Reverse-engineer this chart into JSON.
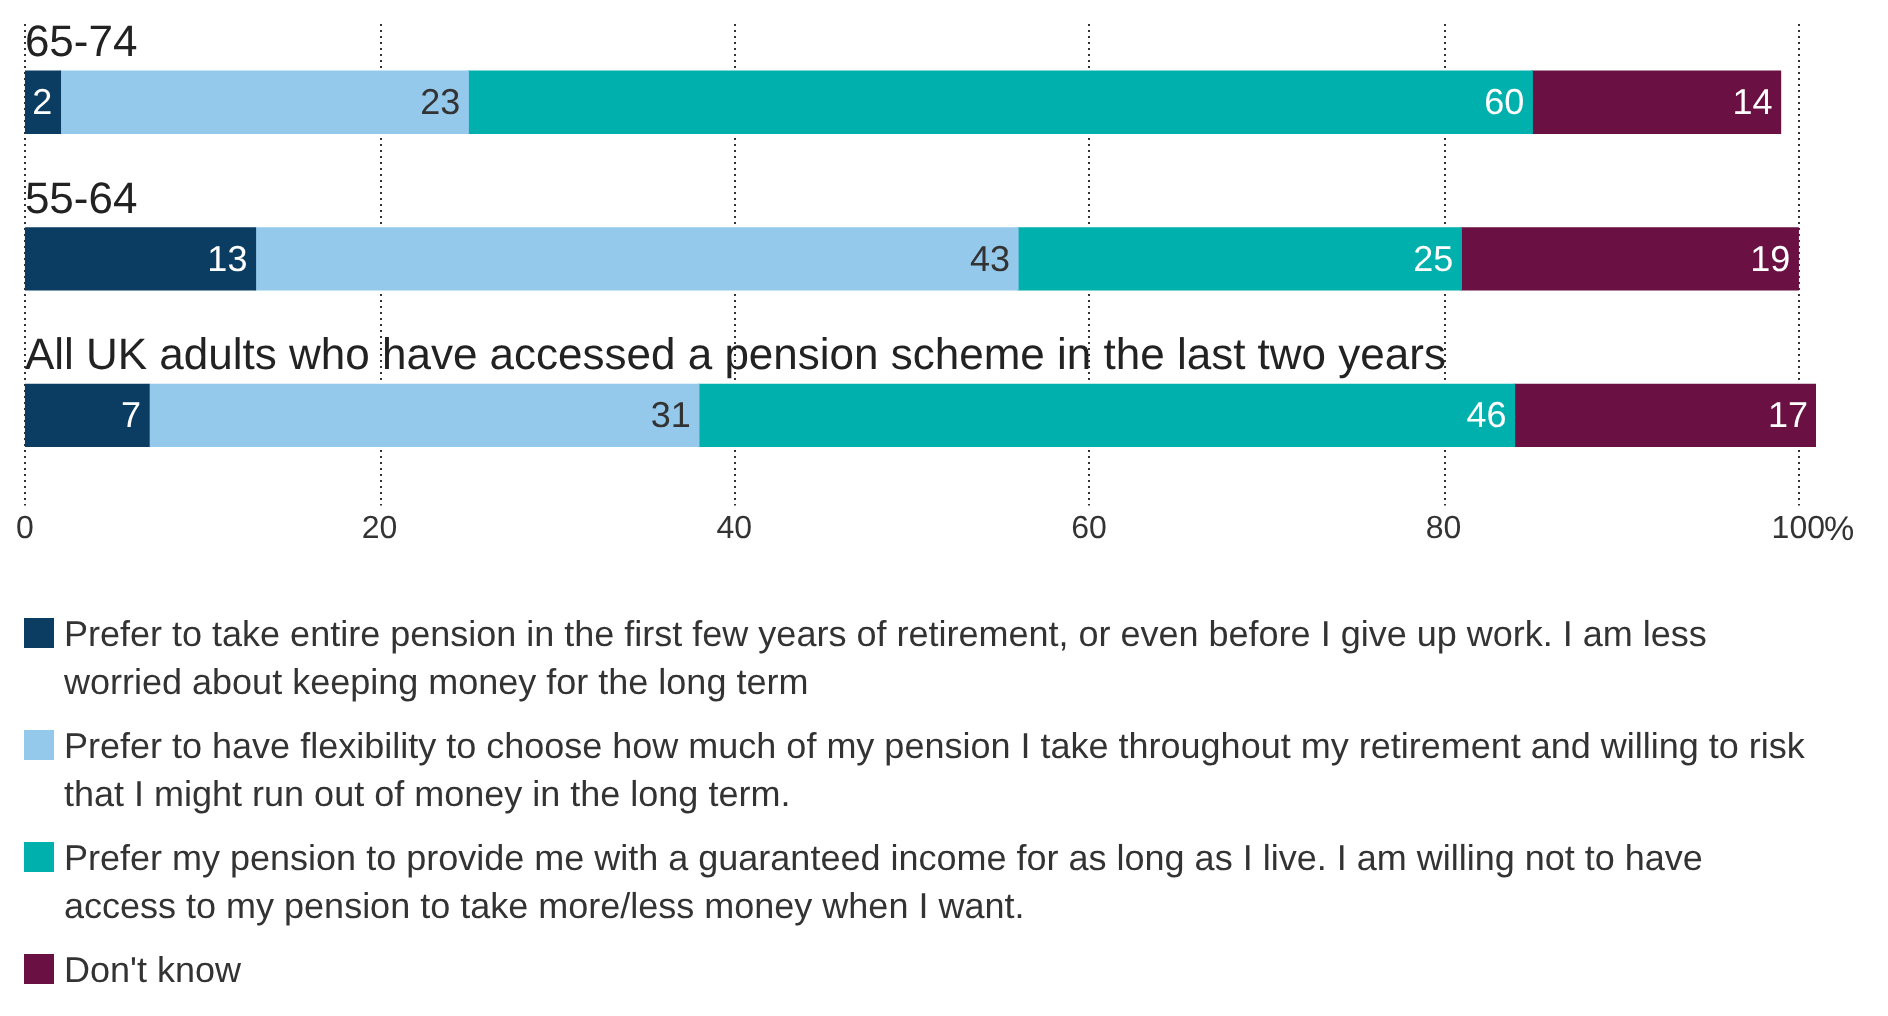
{
  "chart_data": {
    "type": "bar",
    "orientation": "horizontal",
    "stacked": true,
    "categories": [
      "65-74",
      "55-64",
      "All UK adults who have accessed a pension scheme in the last two years"
    ],
    "series": [
      {
        "name": "Prefer to take entire pension in the first few years of retirement, or even before I give up work. I am less worried about keeping money for the long term",
        "color": "#0b3c62",
        "values": [
          2,
          13,
          7
        ]
      },
      {
        "name": "Prefer to have flexibility to choose how much of my pension I take throughout my retirement and willing to risk that I might run out of money in the long term.",
        "color": "#94c9eb",
        "values": [
          23,
          43,
          31
        ]
      },
      {
        "name": "Prefer my pension to provide me with a guaranteed income for as long as I live. I am willing not to have access to my pension to take more/less money when I want.",
        "color": "#00b0ac",
        "values": [
          60,
          25,
          46
        ]
      },
      {
        "name": "Don't know",
        "color": "#6a1042",
        "values": [
          14,
          19,
          17
        ]
      }
    ],
    "xlim": [
      0,
      101
    ],
    "xticks": [
      0,
      20,
      40,
      60,
      80,
      100
    ],
    "xlabel": "%",
    "grid": "x",
    "data_labels": true,
    "legend": "bottom"
  }
}
